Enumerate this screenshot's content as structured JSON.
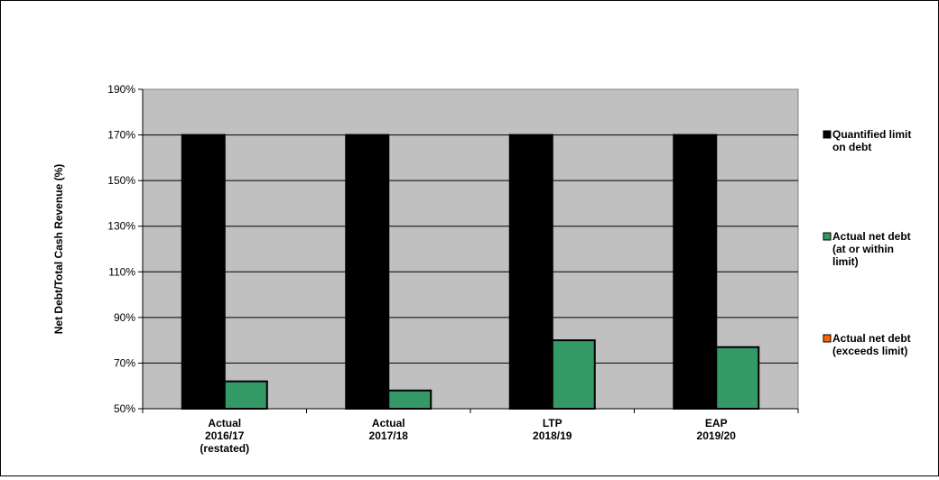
{
  "chart_data": {
    "type": "bar",
    "ylabel": "Net Debt/Total Cash Revenue (%)",
    "xlabel": "",
    "ylim": [
      50,
      190
    ],
    "yticks": [
      50,
      70,
      90,
      110,
      130,
      150,
      170,
      190
    ],
    "ytick_labels": [
      "50%",
      "70%",
      "90%",
      "110%",
      "130%",
      "150%",
      "170%",
      "190%"
    ],
    "grid": true,
    "plot_background": "#c0c0c0",
    "legend_position": "right",
    "categories": [
      [
        "Actual",
        "2016/17",
        "(restated)"
      ],
      [
        "Actual",
        "2017/18"
      ],
      [
        "LTP",
        "2018/19"
      ],
      [
        "EAP",
        "2019/20"
      ]
    ],
    "series": [
      {
        "name": "Quantified limit on debt",
        "legend_lines": [
          "Quantified limit",
          "on debt"
        ],
        "color": "#000000",
        "values": [
          170,
          170,
          170,
          170
        ]
      },
      {
        "name": "Actual net debt (at or within limit)",
        "legend_lines": [
          "Actual net debt",
          "(at or within",
          "limit)"
        ],
        "color": "#339966",
        "values": [
          62,
          58,
          80,
          77
        ]
      },
      {
        "name": "Actual net debt (exceeds limit)",
        "legend_lines": [
          "Actual net debt",
          "(exceeds limit)"
        ],
        "color": "#ff6600",
        "values": [
          null,
          null,
          null,
          null
        ]
      }
    ]
  }
}
